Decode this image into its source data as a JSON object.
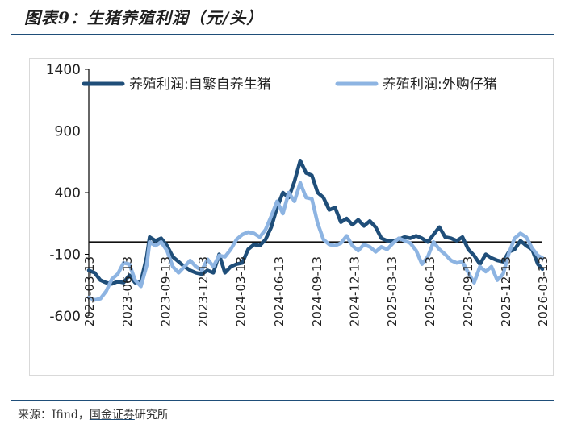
{
  "figure": {
    "title": "图表9：生猪养殖利润（元/头）",
    "source_prefix": "来源：Ifind，",
    "source_brand": "国金证券",
    "source_suffix": "研究所"
  },
  "chart_data": {
    "type": "line",
    "title": "",
    "xlabel": "",
    "ylabel": "",
    "ylim": [
      -600,
      1400
    ],
    "yticks": [
      1400,
      900,
      400,
      -100,
      -600
    ],
    "x_start": "2023-03-13",
    "x_end": "2026-03-13",
    "xticks": [
      "2023-03-13",
      "2023-06-13",
      "2023-09-13",
      "2023-12-13",
      "2024-03-13",
      "2024-06-13",
      "2024-09-13",
      "2024-12-13",
      "2025-03-13",
      "2025-06-13",
      "2025-09-13",
      "2025-12-13",
      "2026-03-13"
    ],
    "zero_line": true,
    "legend_position": "top",
    "series": [
      {
        "name": "养殖利润:自繁自养生猪",
        "color": "#1f4e79",
        "points": [
          [
            "2023-03-13",
            -230
          ],
          [
            "2023-03-27",
            -250
          ],
          [
            "2023-04-10",
            -310
          ],
          [
            "2023-04-24",
            -330
          ],
          [
            "2023-05-08",
            -340
          ],
          [
            "2023-05-22",
            -320
          ],
          [
            "2023-06-05",
            -330
          ],
          [
            "2023-06-19",
            -270
          ],
          [
            "2023-07-03",
            -330
          ],
          [
            "2023-07-17",
            -320
          ],
          [
            "2023-07-31",
            -120
          ],
          [
            "2023-08-07",
            40
          ],
          [
            "2023-08-21",
            10
          ],
          [
            "2023-09-04",
            30
          ],
          [
            "2023-09-18",
            -30
          ],
          [
            "2023-10-02",
            -120
          ],
          [
            "2023-10-16",
            -160
          ],
          [
            "2023-10-30",
            -200
          ],
          [
            "2023-11-13",
            -230
          ],
          [
            "2023-11-27",
            -250
          ],
          [
            "2023-12-11",
            -260
          ],
          [
            "2023-12-25",
            -230
          ],
          [
            "2024-01-08",
            -250
          ],
          [
            "2024-01-22",
            -100
          ],
          [
            "2024-02-05",
            -250
          ],
          [
            "2024-02-19",
            -200
          ],
          [
            "2024-03-04",
            -180
          ],
          [
            "2024-03-18",
            -170
          ],
          [
            "2024-04-01",
            -60
          ],
          [
            "2024-04-15",
            -20
          ],
          [
            "2024-04-29",
            -30
          ],
          [
            "2024-05-13",
            20
          ],
          [
            "2024-05-27",
            120
          ],
          [
            "2024-06-10",
            280
          ],
          [
            "2024-06-24",
            400
          ],
          [
            "2024-07-08",
            360
          ],
          [
            "2024-07-22",
            490
          ],
          [
            "2024-08-05",
            660
          ],
          [
            "2024-08-19",
            560
          ],
          [
            "2024-09-02",
            540
          ],
          [
            "2024-09-16",
            400
          ],
          [
            "2024-09-30",
            360
          ],
          [
            "2024-10-14",
            260
          ],
          [
            "2024-10-28",
            280
          ],
          [
            "2024-11-11",
            160
          ],
          [
            "2024-11-25",
            190
          ],
          [
            "2024-12-09",
            140
          ],
          [
            "2024-12-23",
            180
          ],
          [
            "2025-01-06",
            130
          ],
          [
            "2025-01-20",
            170
          ],
          [
            "2025-02-03",
            120
          ],
          [
            "2025-02-17",
            30
          ],
          [
            "2025-03-03",
            10
          ],
          [
            "2025-03-17",
            10
          ],
          [
            "2025-03-31",
            20
          ],
          [
            "2025-04-14",
            40
          ],
          [
            "2025-04-28",
            30
          ],
          [
            "2025-05-12",
            50
          ],
          [
            "2025-05-26",
            30
          ],
          [
            "2025-06-09",
            0
          ],
          [
            "2025-06-23",
            60
          ],
          [
            "2025-07-07",
            120
          ],
          [
            "2025-07-21",
            40
          ],
          [
            "2025-08-04",
            30
          ],
          [
            "2025-08-18",
            10
          ],
          [
            "2025-09-01",
            40
          ],
          [
            "2025-09-15",
            -60
          ],
          [
            "2025-09-29",
            -110
          ],
          [
            "2025-10-13",
            -180
          ],
          [
            "2025-10-27",
            -100
          ],
          [
            "2025-11-10",
            -130
          ],
          [
            "2025-11-24",
            -150
          ],
          [
            "2025-12-08",
            -160
          ],
          [
            "2025-12-22",
            -80
          ],
          [
            "2026-01-05",
            -60
          ],
          [
            "2026-01-19",
            10
          ],
          [
            "2026-02-02",
            -30
          ],
          [
            "2026-02-16",
            -60
          ],
          [
            "2026-03-02",
            -180
          ],
          [
            "2026-03-13",
            -220
          ]
        ]
      },
      {
        "name": "养殖利润:外购仔猪",
        "color": "#8db4e2",
        "points": [
          [
            "2023-03-13",
            -450
          ],
          [
            "2023-03-27",
            -470
          ],
          [
            "2023-04-10",
            -460
          ],
          [
            "2023-04-24",
            -400
          ],
          [
            "2023-05-08",
            -300
          ],
          [
            "2023-05-22",
            -260
          ],
          [
            "2023-06-05",
            -170
          ],
          [
            "2023-06-19",
            -180
          ],
          [
            "2023-07-03",
            -310
          ],
          [
            "2023-07-17",
            -360
          ],
          [
            "2023-07-31",
            -190
          ],
          [
            "2023-08-07",
            0
          ],
          [
            "2023-08-21",
            -30
          ],
          [
            "2023-09-04",
            0
          ],
          [
            "2023-09-18",
            -70
          ],
          [
            "2023-10-02",
            -200
          ],
          [
            "2023-10-16",
            -250
          ],
          [
            "2023-10-30",
            -200
          ],
          [
            "2023-11-13",
            -150
          ],
          [
            "2023-11-27",
            -200
          ],
          [
            "2023-12-11",
            -230
          ],
          [
            "2023-12-25",
            -140
          ],
          [
            "2024-01-08",
            -200
          ],
          [
            "2024-01-22",
            -110
          ],
          [
            "2024-02-05",
            -120
          ],
          [
            "2024-02-19",
            -60
          ],
          [
            "2024-03-04",
            20
          ],
          [
            "2024-03-18",
            60
          ],
          [
            "2024-04-01",
            80
          ],
          [
            "2024-04-15",
            70
          ],
          [
            "2024-04-29",
            40
          ],
          [
            "2024-05-13",
            100
          ],
          [
            "2024-05-27",
            210
          ],
          [
            "2024-06-10",
            330
          ],
          [
            "2024-06-24",
            230
          ],
          [
            "2024-07-08",
            400
          ],
          [
            "2024-07-22",
            330
          ],
          [
            "2024-08-05",
            480
          ],
          [
            "2024-08-19",
            360
          ],
          [
            "2024-09-02",
            350
          ],
          [
            "2024-09-16",
            150
          ],
          [
            "2024-09-30",
            20
          ],
          [
            "2024-10-14",
            -20
          ],
          [
            "2024-10-28",
            -30
          ],
          [
            "2024-11-11",
            -10
          ],
          [
            "2024-11-25",
            50
          ],
          [
            "2024-12-09",
            -30
          ],
          [
            "2024-12-23",
            -70
          ],
          [
            "2025-01-06",
            -20
          ],
          [
            "2025-01-20",
            -40
          ],
          [
            "2025-02-03",
            -80
          ],
          [
            "2025-02-17",
            -40
          ],
          [
            "2025-03-03",
            -60
          ],
          [
            "2025-03-17",
            -10
          ],
          [
            "2025-03-31",
            30
          ],
          [
            "2025-04-14",
            10
          ],
          [
            "2025-04-28",
            -10
          ],
          [
            "2025-05-12",
            -70
          ],
          [
            "2025-05-26",
            -180
          ],
          [
            "2025-06-09",
            -120
          ],
          [
            "2025-06-23",
            0
          ],
          [
            "2025-07-07",
            -60
          ],
          [
            "2025-07-21",
            -100
          ],
          [
            "2025-08-04",
            -150
          ],
          [
            "2025-08-18",
            -170
          ],
          [
            "2025-09-01",
            -160
          ],
          [
            "2025-09-15",
            -250
          ],
          [
            "2025-09-29",
            -330
          ],
          [
            "2025-10-13",
            -200
          ],
          [
            "2025-10-27",
            -240
          ],
          [
            "2025-11-10",
            -200
          ],
          [
            "2025-11-24",
            -310
          ],
          [
            "2025-12-08",
            -260
          ],
          [
            "2025-12-22",
            -90
          ],
          [
            "2026-01-05",
            30
          ],
          [
            "2026-01-19",
            70
          ],
          [
            "2026-02-02",
            40
          ],
          [
            "2026-02-16",
            -50
          ],
          [
            "2026-03-02",
            -110
          ],
          [
            "2026-03-13",
            -130
          ]
        ]
      }
    ]
  }
}
